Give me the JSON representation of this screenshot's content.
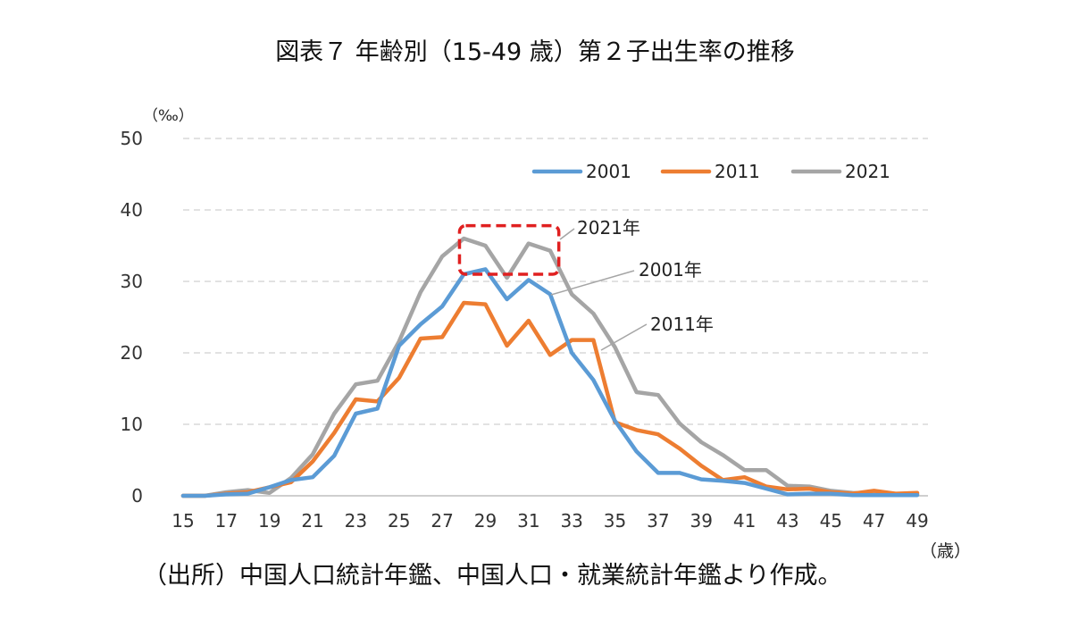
{
  "title": "図表７ 年齢別（15-49 歳）第２子出生率の推移",
  "source": "（出所）中国人口統計年鑑、中国人口・就業統計年鑑より作成。",
  "chart_data": {
    "type": "line",
    "y_unit_label": "（‰）",
    "x_unit_label": "（歳）",
    "ylim": [
      0,
      50
    ],
    "y_ticks": [
      0,
      10,
      20,
      30,
      40,
      50
    ],
    "x_ticks": [
      15,
      17,
      19,
      21,
      23,
      25,
      27,
      29,
      31,
      33,
      35,
      37,
      39,
      41,
      43,
      45,
      47,
      49
    ],
    "grid": true,
    "legend_position": "top-right",
    "x": [
      15,
      16,
      17,
      18,
      19,
      20,
      21,
      22,
      23,
      24,
      25,
      26,
      27,
      28,
      29,
      30,
      31,
      32,
      33,
      34,
      35,
      36,
      37,
      38,
      39,
      40,
      41,
      42,
      43,
      44,
      45,
      46,
      47,
      48,
      49
    ],
    "series": [
      {
        "name": "2001",
        "color": "#5B9BD5",
        "values": [
          0,
          0,
          0.2,
          0.3,
          1.2,
          2.2,
          2.6,
          5.6,
          11.5,
          12.2,
          21,
          24,
          26.5,
          31,
          31.7,
          27.5,
          30.2,
          28.2,
          20,
          16.2,
          10.5,
          6.2,
          3.2,
          3.2,
          2.3,
          2.1,
          1.8,
          1,
          0.2,
          0.3,
          0.3,
          0.1,
          0.1,
          0.1,
          0.1
        ]
      },
      {
        "name": "2011",
        "color": "#ED7D31",
        "values": [
          0,
          0,
          0.3,
          0.5,
          1.2,
          1.9,
          4.8,
          8.8,
          13.5,
          13.2,
          16.5,
          22,
          22.2,
          27,
          26.8,
          21,
          24.5,
          19.7,
          21.8,
          21.8,
          10.3,
          9.2,
          8.6,
          6.6,
          4.2,
          2.2,
          2.6,
          1.3,
          0.9,
          1,
          0.5,
          0.3,
          0.7,
          0.3,
          0.4
        ]
      },
      {
        "name": "2021",
        "color": "#A5A5A5",
        "values": [
          0,
          0,
          0.5,
          0.8,
          0.4,
          2.5,
          5.8,
          11.5,
          15.6,
          16.1,
          21.6,
          28.5,
          33.5,
          36,
          35,
          30.5,
          35.3,
          34.3,
          28.2,
          25.5,
          20.8,
          14.5,
          14.1,
          10.1,
          7.5,
          5.7,
          3.6,
          3.6,
          1.4,
          1.3,
          0.7,
          0.4,
          0.3,
          0.2,
          0.2
        ]
      }
    ],
    "annotations": [
      {
        "text": "2021年",
        "series": "2021"
      },
      {
        "text": "2001年",
        "series": "2001"
      },
      {
        "text": "2011年",
        "series": "2011"
      }
    ],
    "highlight_box": {
      "x_range": [
        27.8,
        32.4
      ],
      "y_range": [
        31,
        37.8
      ],
      "color": "#E02020"
    }
  }
}
